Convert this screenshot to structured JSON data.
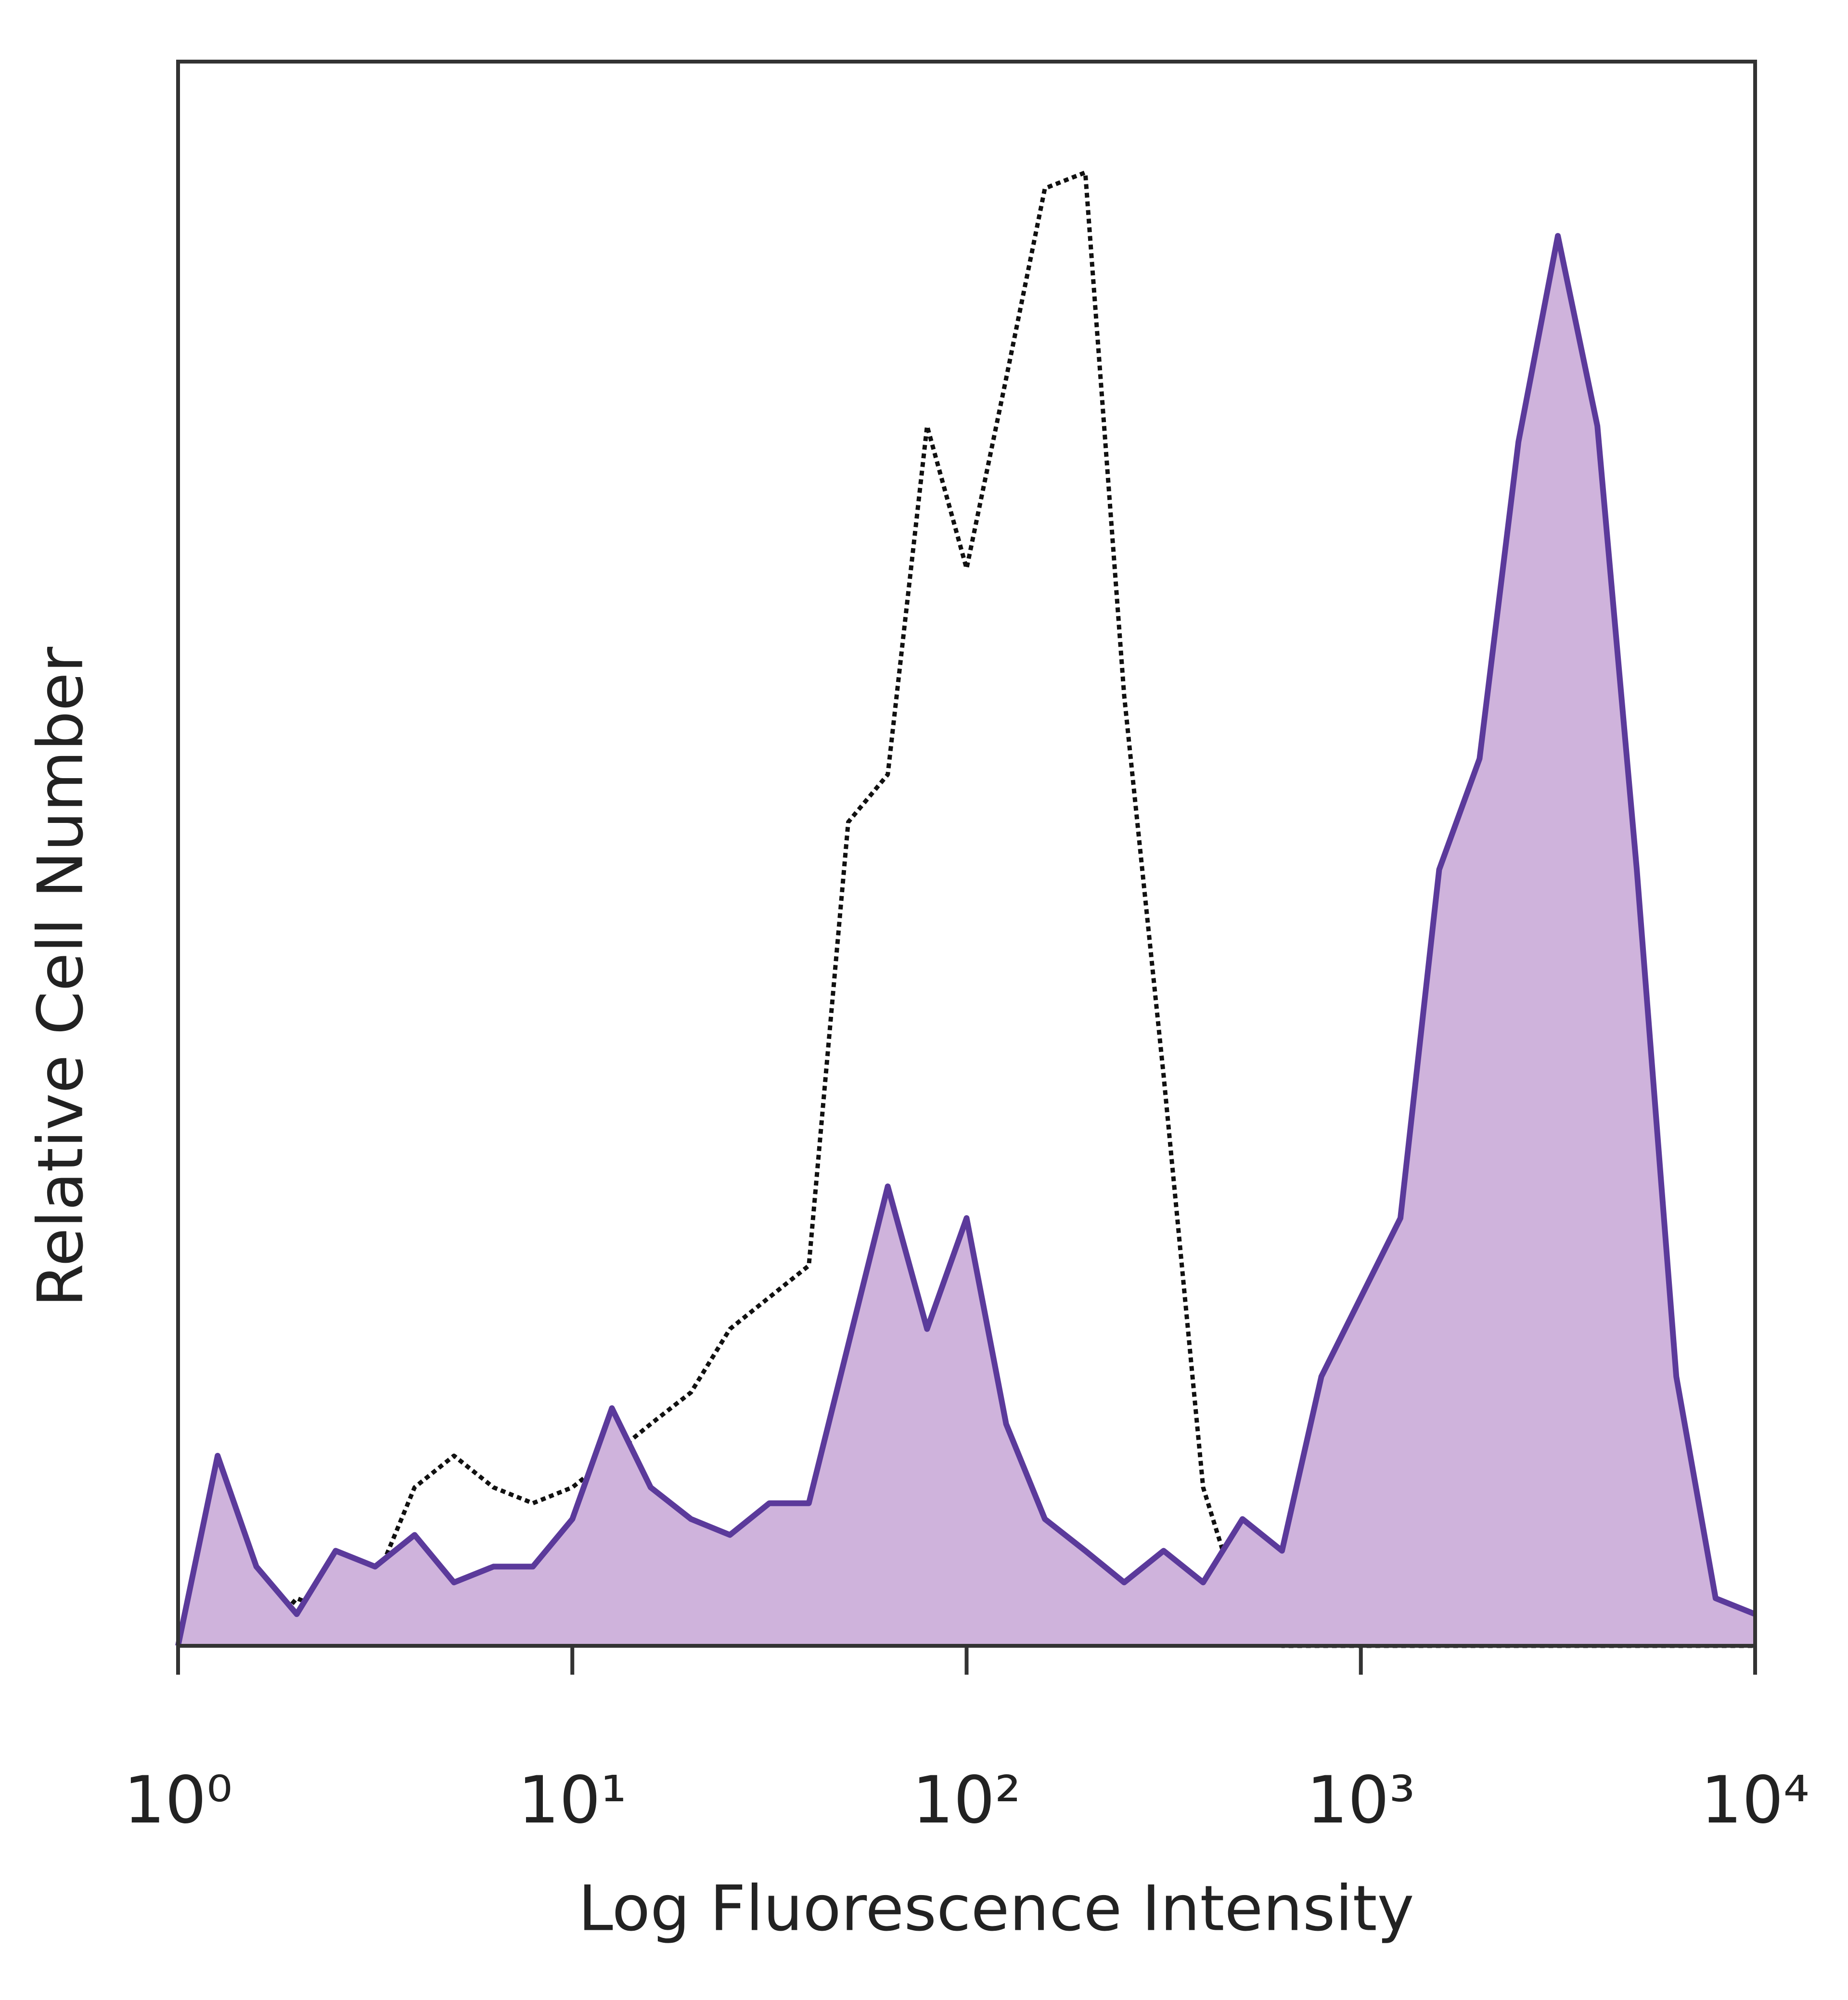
{
  "chart_data": {
    "type": "line",
    "x_label": "Log Fluorescence Intensity",
    "y_label": "Relative Cell Number",
    "x_log": true,
    "x": [
      1,
      1.26,
      1.58,
      2.0,
      2.51,
      3.16,
      3.98,
      5.01,
      6.31,
      7.94,
      10,
      12.6,
      15.8,
      20.0,
      25.1,
      31.6,
      39.8,
      50.1,
      63.1,
      79.4,
      100,
      126,
      158,
      200,
      251,
      316,
      398,
      501,
      631,
      794,
      1000,
      1260,
      1580,
      2000,
      2510,
      3160,
      3980,
      5010,
      6310,
      7940,
      10000
    ],
    "series": [
      {
        "color": "#111111",
        "dashed": true,
        "values": [
          0,
          8,
          0,
          3,
          2,
          4,
          10,
          12,
          10,
          9,
          10,
          12,
          14,
          16,
          20,
          22,
          24,
          52,
          55,
          77,
          68,
          80,
          92,
          93,
          60,
          36,
          10,
          2,
          0,
          0,
          0,
          0,
          0,
          0,
          0,
          0,
          0,
          0,
          0,
          0,
          0
        ]
      },
      {
        "color": "#5b3a9b",
        "fill": "#cfb3dc",
        "values": [
          0,
          12,
          5,
          2,
          6,
          5,
          7,
          4,
          5,
          5,
          8,
          15,
          10,
          8,
          7,
          9,
          9,
          19,
          29,
          20,
          27,
          14,
          8,
          6,
          4,
          6,
          4,
          8,
          6,
          17,
          22,
          27,
          49,
          56,
          76,
          89,
          77,
          49,
          17,
          3,
          2
        ]
      }
    ],
    "xlim": [
      1,
      10000
    ],
    "ylim": [
      0,
      100
    ],
    "xticks": [
      {
        "value": 1,
        "label": "10⁰"
      },
      {
        "value": 10,
        "label": "10¹"
      },
      {
        "value": 100,
        "label": "10²"
      },
      {
        "value": 1000,
        "label": "10³"
      },
      {
        "value": 10000,
        "label": "10⁴"
      }
    ]
  }
}
